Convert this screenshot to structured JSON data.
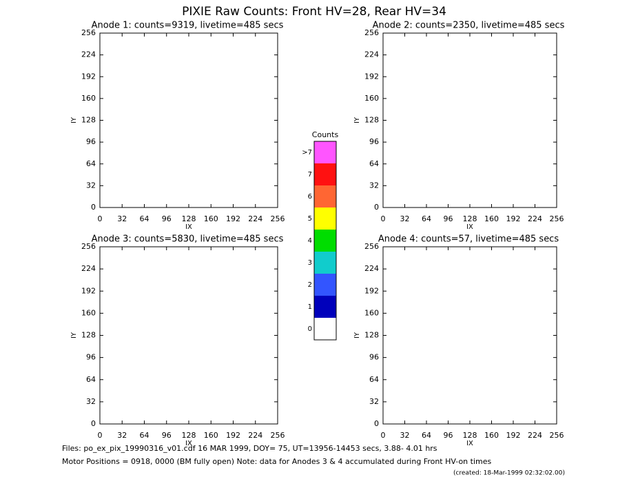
{
  "title": "PIXIE Raw Counts:  Front HV=28, Rear HV=34",
  "chart_data": [
    {
      "type": "heatmap",
      "title": "Anode 1: counts=9319, livetime=485 secs",
      "xlabel": "IX",
      "ylabel": "IY",
      "xlim": [
        0,
        256
      ],
      "ylim": [
        0,
        256
      ],
      "xticks": [
        0,
        32,
        64,
        96,
        128,
        160,
        192,
        224,
        256
      ],
      "yticks": [
        0,
        32,
        64,
        96,
        128,
        160,
        192,
        224,
        256
      ]
    },
    {
      "type": "heatmap",
      "title": "Anode 2: counts=2350, livetime=485 secs",
      "xlabel": "IX",
      "ylabel": "IY",
      "xlim": [
        0,
        256
      ],
      "ylim": [
        0,
        256
      ],
      "xticks": [
        0,
        32,
        64,
        96,
        128,
        160,
        192,
        224,
        256
      ],
      "yticks": [
        0,
        32,
        64,
        96,
        128,
        160,
        192,
        224,
        256
      ]
    },
    {
      "type": "heatmap",
      "title": "Anode 3: counts=5830, livetime=485 secs",
      "xlabel": "IX",
      "ylabel": "IY",
      "xlim": [
        0,
        256
      ],
      "ylim": [
        0,
        256
      ],
      "xticks": [
        0,
        32,
        64,
        96,
        128,
        160,
        192,
        224,
        256
      ],
      "yticks": [
        0,
        32,
        64,
        96,
        128,
        160,
        192,
        224,
        256
      ]
    },
    {
      "type": "heatmap",
      "title": "Anode 4: counts=57, livetime=485 secs",
      "xlabel": "IX",
      "ylabel": "IY",
      "xlim": [
        0,
        256
      ],
      "ylim": [
        0,
        256
      ],
      "xticks": [
        0,
        32,
        64,
        96,
        128,
        160,
        192,
        224,
        256
      ],
      "yticks": [
        0,
        32,
        64,
        96,
        128,
        160,
        192,
        224,
        256
      ]
    },
    {
      "type": "colorbar",
      "title": "Counts",
      "categories": [
        "0",
        "1",
        "2",
        "3",
        "4",
        "5",
        "6",
        "7",
        ">7"
      ],
      "colors": [
        "#ffffff",
        "#0000bb",
        "#3355ff",
        "#11cccc",
        "#00dd00",
        "#ffff00",
        "#ff6633",
        "#ff1111",
        "#ff55ff"
      ]
    }
  ],
  "footer": [
    "Files: po_ex_pix_19990316_v01.cdf    16 MAR 1999, DOY= 75, UT=13956-14453 secs,  3.88- 4.01 hrs",
    "Motor Positions = 0918, 0000 (BM fully open)    Note: data for Anodes 3 & 4 accumulated during Front HV-on times"
  ],
  "created": "(created: 18-Mar-1999 02:32:02.00)"
}
